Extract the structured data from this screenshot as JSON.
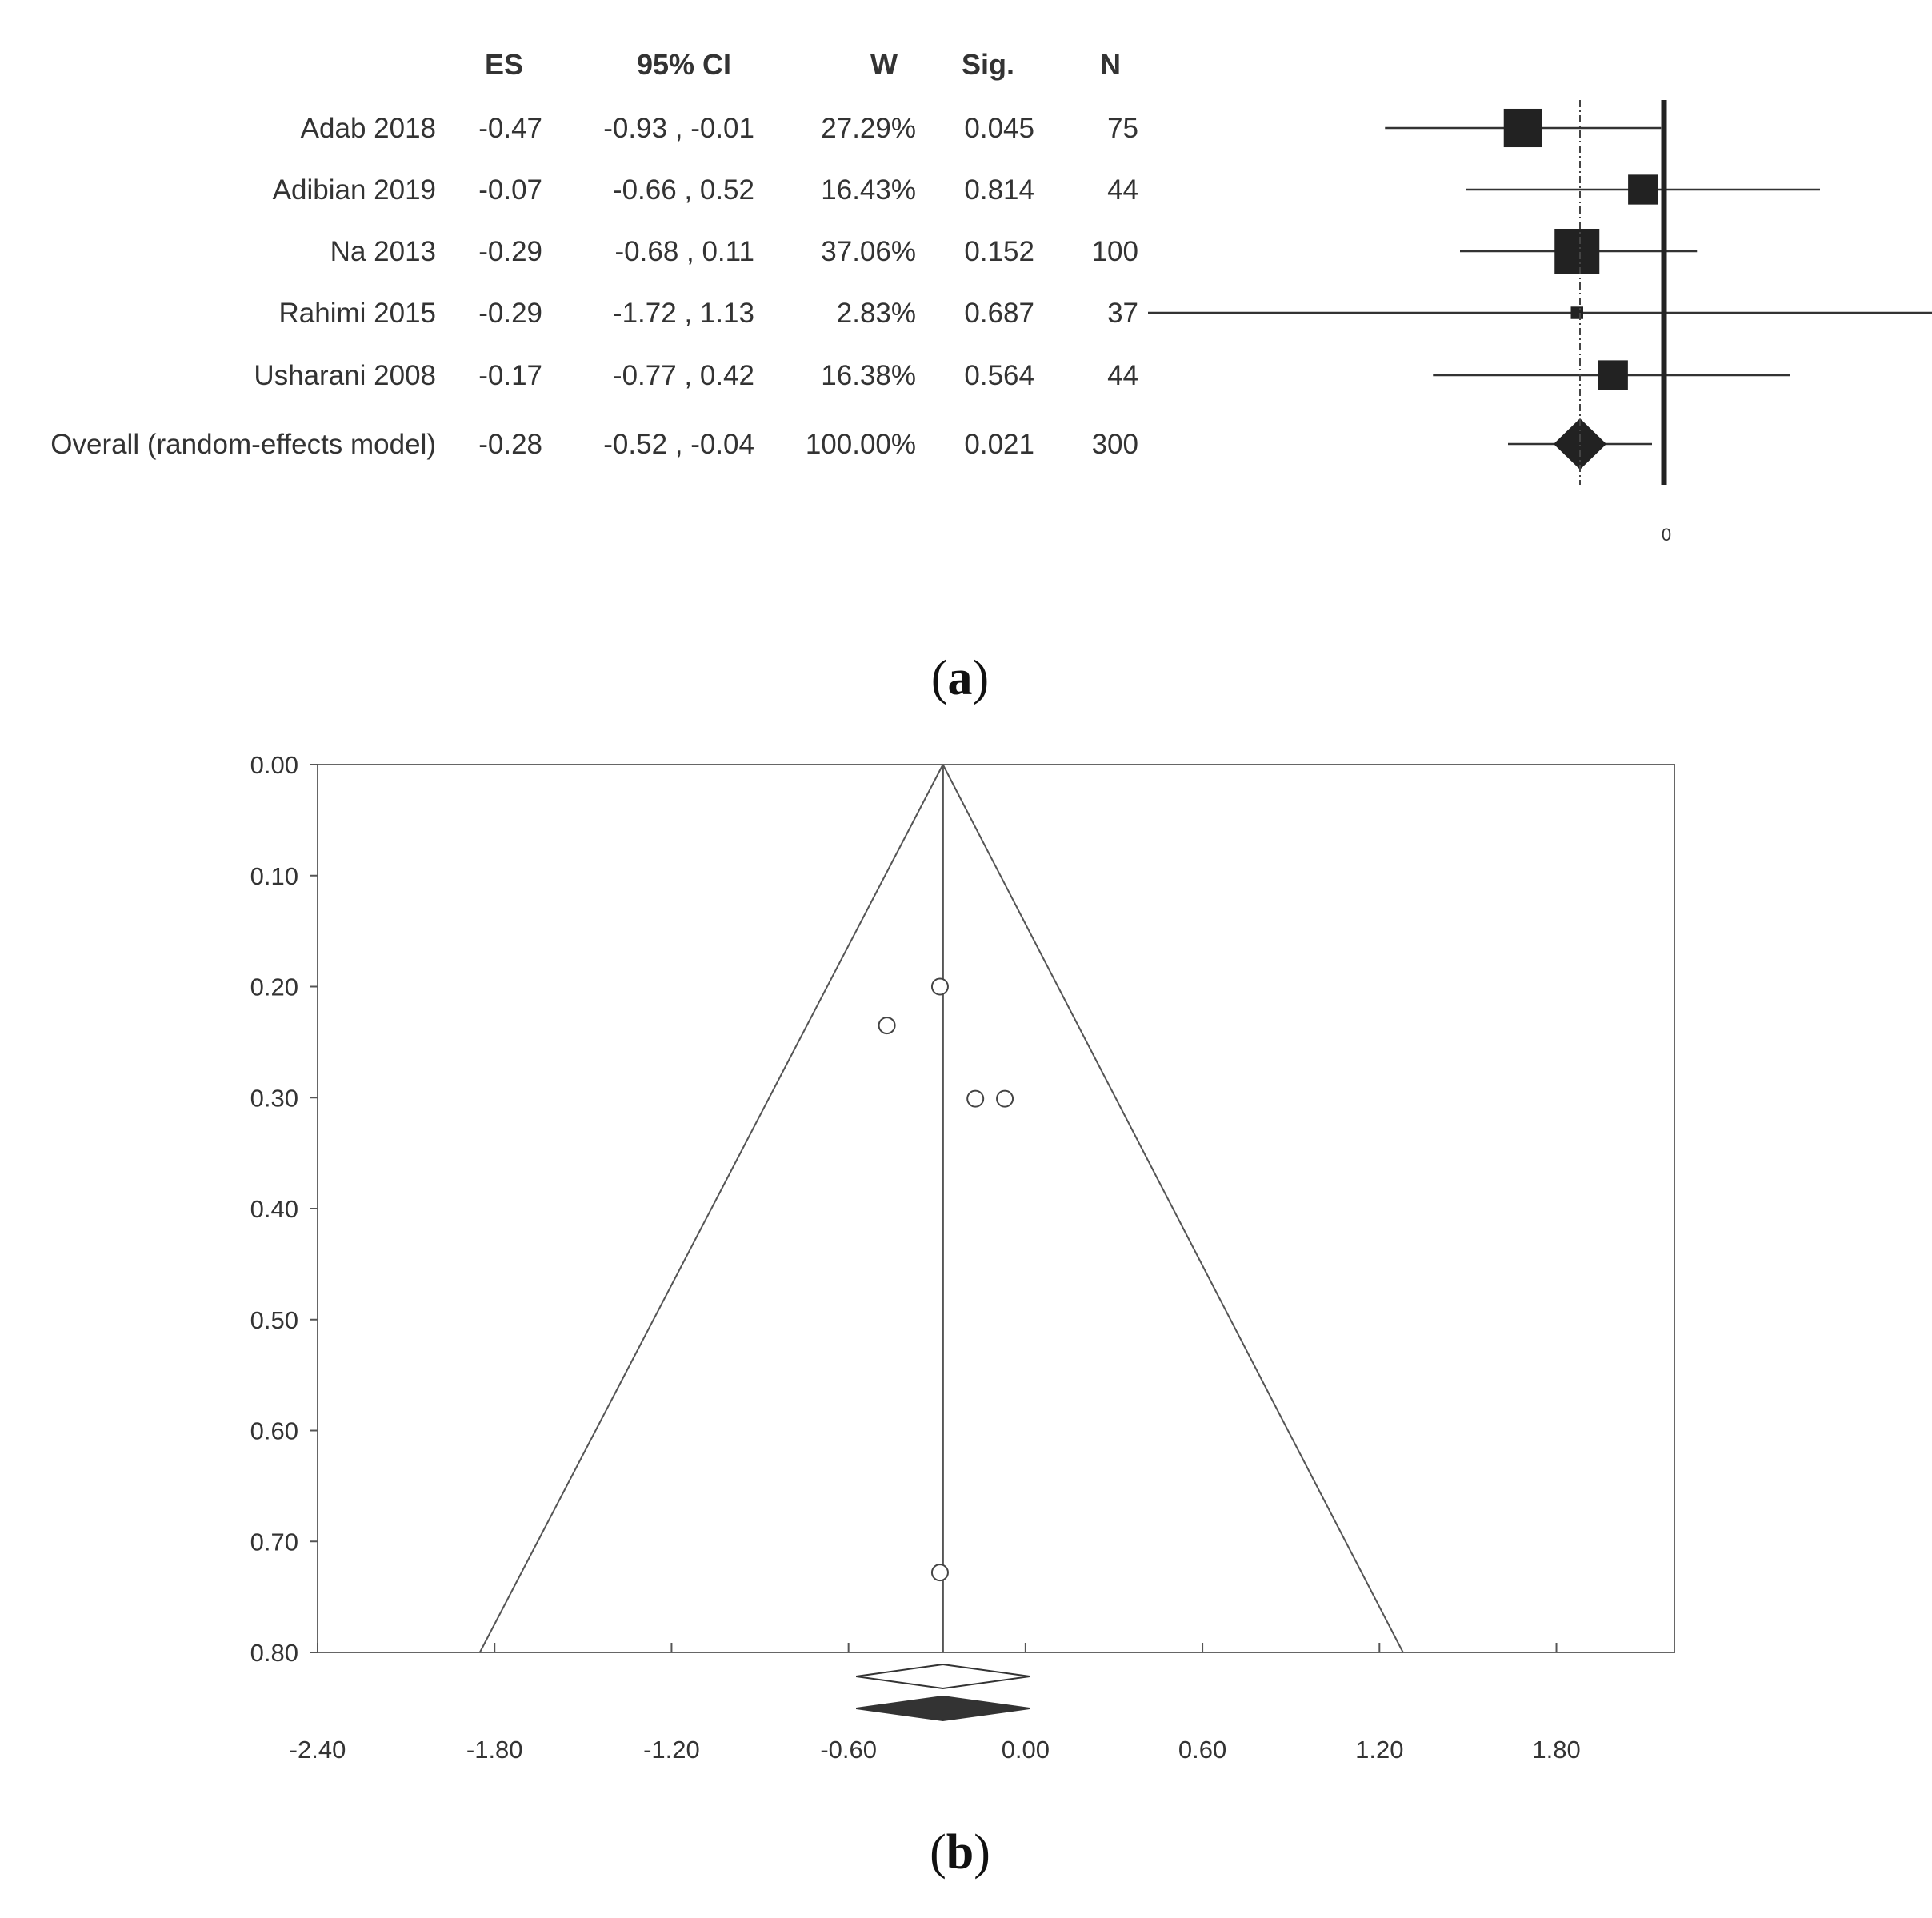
{
  "chart_data": [
    {
      "type": "forest",
      "panel_label": "a",
      "columns": [
        "ES",
        "95% CI",
        "W",
        "Sig.",
        "N"
      ],
      "rows": [
        {
          "study": "Adab  2018",
          "es": -0.47,
          "ci_low": -0.93,
          "ci_high": -0.01,
          "ci_text": "-0.93 , -0.01",
          "weight": "27.29%",
          "sig": "0.045",
          "n": 75,
          "marker": "square"
        },
        {
          "study": "Adibian 2019",
          "es": -0.07,
          "ci_low": -0.66,
          "ci_high": 0.52,
          "ci_text": "-0.66 , 0.52",
          "weight": "16.43%",
          "sig": "0.814",
          "n": 44,
          "marker": "square"
        },
        {
          "study": "Na 2013",
          "es": -0.29,
          "ci_low": -0.68,
          "ci_high": 0.11,
          "ci_text": "-0.68 , 0.11",
          "weight": "37.06%",
          "sig": "0.152",
          "n": 100,
          "marker": "square"
        },
        {
          "study": "Rahimi 2015",
          "es": -0.29,
          "ci_low": -1.72,
          "ci_high": 1.13,
          "ci_text": "-1.72 , 1.13",
          "weight": "2.83%",
          "sig": "0.687",
          "n": 37,
          "marker": "square"
        },
        {
          "study": "Usharani 2008",
          "es": -0.17,
          "ci_low": -0.77,
          "ci_high": 0.42,
          "ci_text": "-0.77 , 0.42",
          "weight": "16.38%",
          "sig": "0.564",
          "n": 44,
          "marker": "square"
        },
        {
          "study": "Overall (random-effects model)",
          "es": -0.28,
          "ci_low": -0.52,
          "ci_high": -0.04,
          "ci_text": "-0.52 , -0.04",
          "weight": "100.00%",
          "sig": "0.021",
          "n": 300,
          "marker": "diamond"
        }
      ],
      "es_display": [
        "-0.47",
        "-0.07",
        "-0.29",
        "-0.29",
        "-0.17",
        "-0.28"
      ],
      "null_line": 0,
      "reference_line": -0.28,
      "x_tick_labels": [
        "0"
      ]
    },
    {
      "type": "funnel",
      "panel_label": "b",
      "xlim": [
        -2.4,
        2.2
      ],
      "ylim": [
        0.8,
        0.0
      ],
      "x_ticks": [
        -2.4,
        -1.8,
        -1.2,
        -0.6,
        0.0,
        0.6,
        1.2,
        1.8
      ],
      "x_tick_labels": [
        "-2.40",
        "-1.80",
        "-1.20",
        "-0.60",
        "0.00",
        "0.60",
        "1.20",
        "1.80"
      ],
      "y_ticks": [
        0.0,
        0.1,
        0.2,
        0.3,
        0.4,
        0.5,
        0.6,
        0.7,
        0.8
      ],
      "y_tick_labels": [
        "0.00",
        "0.10",
        "0.20",
        "0.30",
        "0.40",
        "0.50",
        "0.60",
        "0.70",
        "0.80"
      ],
      "y_reversed": true,
      "pooled_effect": -0.28,
      "funnel_bottom": [
        -1.85,
        1.28
      ],
      "points": [
        {
          "x": -0.29,
          "y": 0.2
        },
        {
          "x": -0.47,
          "y": 0.235
        },
        {
          "x": -0.17,
          "y": 0.301
        },
        {
          "x": -0.07,
          "y": 0.301
        },
        {
          "x": -0.29,
          "y": 0.728
        }
      ],
      "observed_diamond": {
        "center": -0.28,
        "low": -0.52,
        "high": -0.04,
        "fill": "#ffffff"
      },
      "adjusted_diamond": {
        "center": -0.28,
        "low": -0.52,
        "high": -0.04,
        "fill": "#333333"
      }
    }
  ]
}
